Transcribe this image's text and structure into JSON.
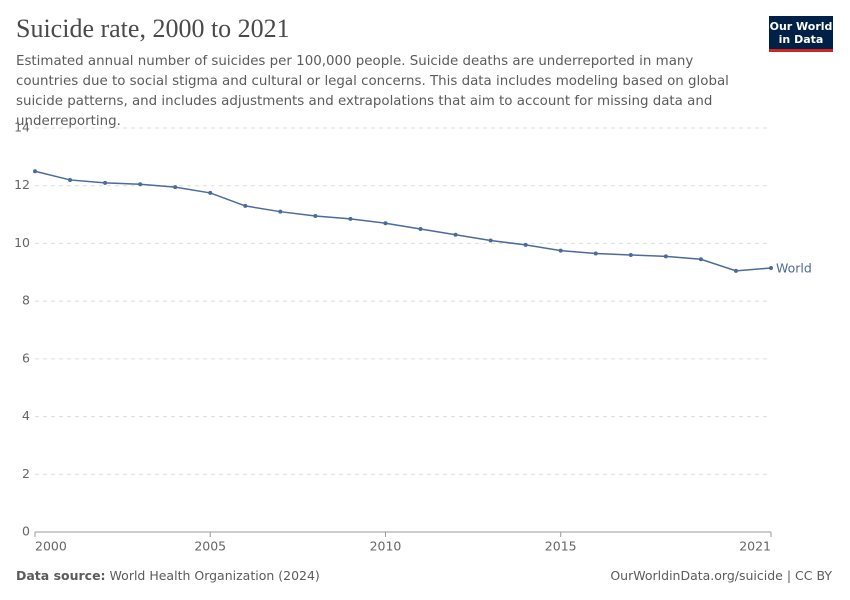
{
  "chart_data": {
    "type": "line",
    "title": "Suicide rate, 2000 to 2021",
    "subtitle": "Estimated annual number of suicides per 100,000 people. Suicide deaths are underreported in many countries due to social stigma and cultural or legal concerns. This data includes modeling based on global suicide patterns, and includes adjustments and extrapolations that aim to account for missing data and underreporting.",
    "logo": [
      "Our World",
      "in Data"
    ],
    "x": [
      2000,
      2001,
      2002,
      2003,
      2004,
      2005,
      2006,
      2007,
      2008,
      2009,
      2010,
      2011,
      2012,
      2013,
      2014,
      2015,
      2016,
      2017,
      2018,
      2019,
      2020,
      2021
    ],
    "series": [
      {
        "name": "World",
        "color": "#4c6a9c",
        "values": [
          12.5,
          12.2,
          12.1,
          12.05,
          11.95,
          11.75,
          11.3,
          11.1,
          10.95,
          10.85,
          10.7,
          10.5,
          10.3,
          10.1,
          9.95,
          9.75,
          9.65,
          9.6,
          9.55,
          9.45,
          9.05,
          9.15
        ]
      }
    ],
    "xlim": [
      2000,
      2021
    ],
    "xticks": [
      2000,
      2005,
      2010,
      2015,
      2021
    ],
    "ylim": [
      0,
      14
    ],
    "yticks": [
      0,
      2,
      4,
      6,
      8,
      10,
      12,
      14
    ],
    "grid": true,
    "source_label": "Data source:",
    "source": "World Health Organization (2024)",
    "credit": "OurWorldinData.org/suicide | CC BY"
  }
}
